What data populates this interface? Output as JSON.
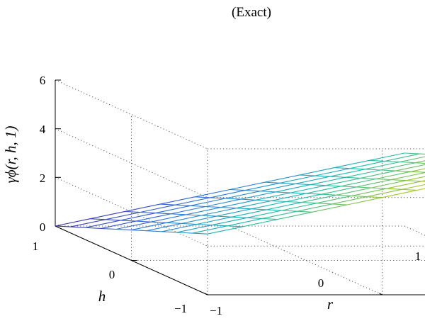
{
  "chart_data": {
    "type": "surface",
    "title": "(Exact)",
    "xlabel": "r",
    "ylabel": "h",
    "zlabel": "γϕ(r, h, 1)",
    "xlim": [
      -1,
      1
    ],
    "ylim": [
      -1,
      1
    ],
    "zlim": [
      0,
      6
    ],
    "xticks": [
      -1,
      0,
      1
    ],
    "yticks": [
      -1,
      0,
      1
    ],
    "zticks": [
      0,
      2,
      4,
      6
    ],
    "xtick_labels": [
      "−1",
      "0",
      "1"
    ],
    "ytick_labels": [
      "−1",
      "0",
      "1"
    ],
    "ztick_labels": [
      "0",
      "2",
      "4",
      "6"
    ],
    "grid": true,
    "colormap": "parula",
    "mesh": {
      "r_points": 11,
      "h_points": 11
    },
    "corner_values": [
      {
        "r": -1,
        "h": -1,
        "z": 2.5
      },
      {
        "r": 1,
        "h": -1,
        "z": 5.5
      },
      {
        "r": -1,
        "h": 1,
        "z": 0
      },
      {
        "r": 1,
        "h": 1,
        "z": 3
      }
    ]
  }
}
